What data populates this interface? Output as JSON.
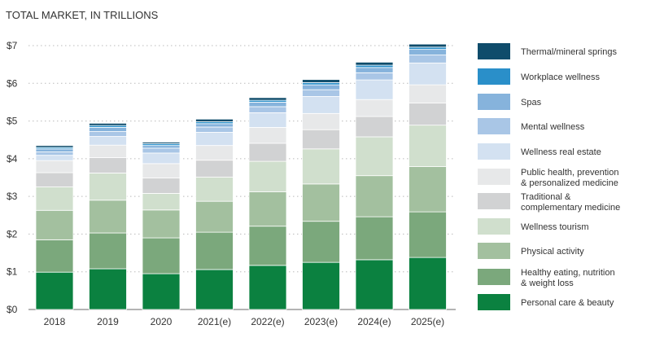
{
  "chart_data": {
    "type": "bar",
    "stacked": true,
    "title": "TOTAL MARKET, IN TRILLIONS",
    "xlabel": "",
    "ylabel": "",
    "ylim": [
      0,
      7
    ],
    "yticks": [
      "$0",
      "$1",
      "$2",
      "$3",
      "$4",
      "$5",
      "$6",
      "$7"
    ],
    "grid": true,
    "legend_position": "right",
    "categories": [
      "2018",
      "2019",
      "2020",
      "2021(e)",
      "2022(e)",
      "2023(e)",
      "2024(e)",
      "2025(e)"
    ],
    "series": [
      {
        "name": "Personal care & beauty",
        "color": "#0b8140",
        "values": [
          0.99,
          1.08,
          0.95,
          1.06,
          1.17,
          1.25,
          1.32,
          1.38
        ]
      },
      {
        "name": "Healthy eating, nutrition & weight loss",
        "color": "#7ba87c",
        "values": [
          0.86,
          0.95,
          0.95,
          0.99,
          1.04,
          1.09,
          1.14,
          1.21
        ]
      },
      {
        "name": "Physical activity",
        "color": "#a3c09f",
        "values": [
          0.78,
          0.87,
          0.74,
          0.82,
          0.91,
          0.99,
          1.09,
          1.2
        ]
      },
      {
        "name": "Wellness tourism",
        "color": "#d0dfcd",
        "values": [
          0.62,
          0.72,
          0.44,
          0.64,
          0.81,
          0.93,
          1.03,
          1.1
        ]
      },
      {
        "name": "Traditional & complementary medicine",
        "color": "#d1d2d3",
        "values": [
          0.38,
          0.41,
          0.41,
          0.45,
          0.48,
          0.51,
          0.54,
          0.59
        ]
      },
      {
        "name": "Public health, prevention & personalized medicine",
        "color": "#e7e8e9",
        "values": [
          0.32,
          0.33,
          0.38,
          0.39,
          0.42,
          0.43,
          0.45,
          0.48
        ]
      },
      {
        "name": "Wellness real estate",
        "color": "#d3e1f1",
        "values": [
          0.14,
          0.23,
          0.28,
          0.35,
          0.39,
          0.45,
          0.52,
          0.58
        ]
      },
      {
        "name": "Mental wellness",
        "color": "#a9c6e6",
        "values": [
          0.09,
          0.13,
          0.13,
          0.14,
          0.16,
          0.18,
          0.19,
          0.21
        ]
      },
      {
        "name": "Spas",
        "color": "#86b3dc",
        "values": [
          0.08,
          0.11,
          0.07,
          0.09,
          0.12,
          0.13,
          0.14,
          0.15
        ]
      },
      {
        "name": "Workplace wellness",
        "color": "#2a8fc9",
        "values": [
          0.04,
          0.05,
          0.05,
          0.05,
          0.05,
          0.06,
          0.06,
          0.06
        ]
      },
      {
        "name": "Thermal/mineral springs",
        "color": "#0f4c6b",
        "values": [
          0.05,
          0.06,
          0.04,
          0.07,
          0.07,
          0.08,
          0.08,
          0.08
        ]
      }
    ],
    "legend_lines": [
      [
        "Thermal/mineral springs"
      ],
      [
        "Workplace wellness"
      ],
      [
        "Spas"
      ],
      [
        "Mental wellness"
      ],
      [
        "Wellness real estate"
      ],
      [
        "Public health, prevention",
        "& personalized medicine"
      ],
      [
        "Traditional &",
        "complementary medicine"
      ],
      [
        "Wellness tourism"
      ],
      [
        "Physical activity"
      ],
      [
        "Healthy eating, nutrition",
        "& weight loss"
      ],
      [
        "Personal care & beauty"
      ]
    ]
  }
}
